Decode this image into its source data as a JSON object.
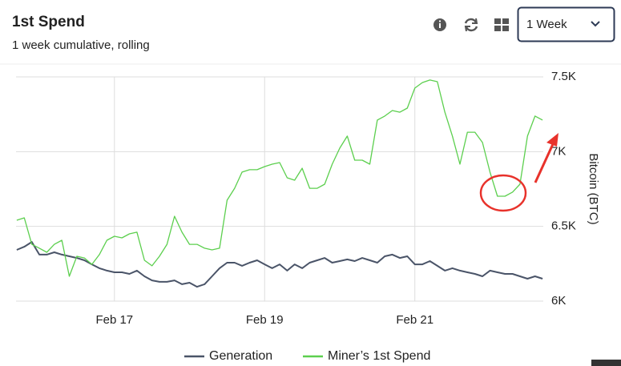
{
  "header": {
    "title": "1st Spend",
    "subtitle": "1 week cumulative, rolling",
    "period": "1 Week"
  },
  "chart_data": {
    "type": "line",
    "y_axis_label": "Bitcoin (BTC)",
    "x": [
      15.7,
      15.8,
      15.9,
      16.0,
      16.1,
      16.2,
      16.3,
      16.4,
      16.5,
      16.6,
      16.7,
      16.8,
      16.9,
      17.0,
      17.1,
      17.2,
      17.3,
      17.4,
      17.5,
      17.6,
      17.7,
      17.8,
      17.9,
      18.0,
      18.1,
      18.2,
      18.3,
      18.4,
      18.5,
      18.6,
      18.7,
      18.8,
      18.9,
      19.0,
      19.1,
      19.2,
      19.3,
      19.4,
      19.5,
      19.6,
      19.7,
      19.8,
      19.9,
      20.0,
      20.1,
      20.2,
      20.3,
      20.4,
      20.5,
      20.6,
      20.7,
      20.8,
      20.9,
      21.0,
      21.1,
      21.2,
      21.3,
      21.4,
      21.5,
      21.6,
      21.7,
      21.8,
      21.9,
      22.0,
      22.1,
      22.2,
      22.3,
      22.4,
      22.5,
      22.6,
      22.7
    ],
    "xlim": [
      15.69,
      22.71
    ],
    "xticks": [
      {
        "value": 17,
        "label": "Feb 17"
      },
      {
        "value": 19,
        "label": "Feb 19"
      },
      {
        "value": 21,
        "label": "Feb 21"
      }
    ],
    "ylim": [
      6000,
      7500
    ],
    "yticks": [
      {
        "value": 6000,
        "label": "6K"
      },
      {
        "value": 6500,
        "label": "6.5K"
      },
      {
        "value": 7000,
        "label": "7K"
      },
      {
        "value": 7500,
        "label": "7.5K"
      }
    ],
    "grid": true,
    "series": [
      {
        "name": "Generation",
        "color": "#4a5468",
        "values": [
          6343,
          6364,
          6396,
          6311,
          6311,
          6327,
          6311,
          6300,
          6289,
          6273,
          6246,
          6220,
          6204,
          6193,
          6193,
          6182,
          6204,
          6166,
          6139,
          6129,
          6129,
          6139,
          6113,
          6123,
          6096,
          6113,
          6166,
          6220,
          6257,
          6257,
          6236,
          6257,
          6273,
          6246,
          6220,
          6246,
          6204,
          6246,
          6220,
          6257,
          6273,
          6289,
          6257,
          6268,
          6279,
          6268,
          6289,
          6273,
          6257,
          6300,
          6311,
          6289,
          6300,
          6246,
          6246,
          6268,
          6236,
          6204,
          6220,
          6204,
          6193,
          6182,
          6166,
          6204,
          6193,
          6182,
          6182,
          6166,
          6150,
          6166,
          6150
        ]
      },
      {
        "name": "Miner’s 1st Spend",
        "color": "#5ccf4e",
        "values": [
          6541,
          6557,
          6380,
          6354,
          6327,
          6380,
          6407,
          6166,
          6300,
          6289,
          6246,
          6311,
          6407,
          6434,
          6423,
          6450,
          6461,
          6273,
          6236,
          6300,
          6380,
          6568,
          6461,
          6380,
          6380,
          6354,
          6343,
          6354,
          6675,
          6755,
          6863,
          6879,
          6879,
          6900,
          6916,
          6927,
          6825,
          6809,
          6889,
          6755,
          6755,
          6782,
          6916,
          7023,
          7104,
          6943,
          6943,
          6916,
          7211,
          7238,
          7275,
          7264,
          7291,
          7425,
          7462,
          7479,
          7468,
          7264,
          7104,
          6916,
          7130,
          7130,
          7061,
          6863,
          6702,
          6702,
          6729,
          6782,
          7104,
          7238,
          7211
        ]
      }
    ]
  }
}
